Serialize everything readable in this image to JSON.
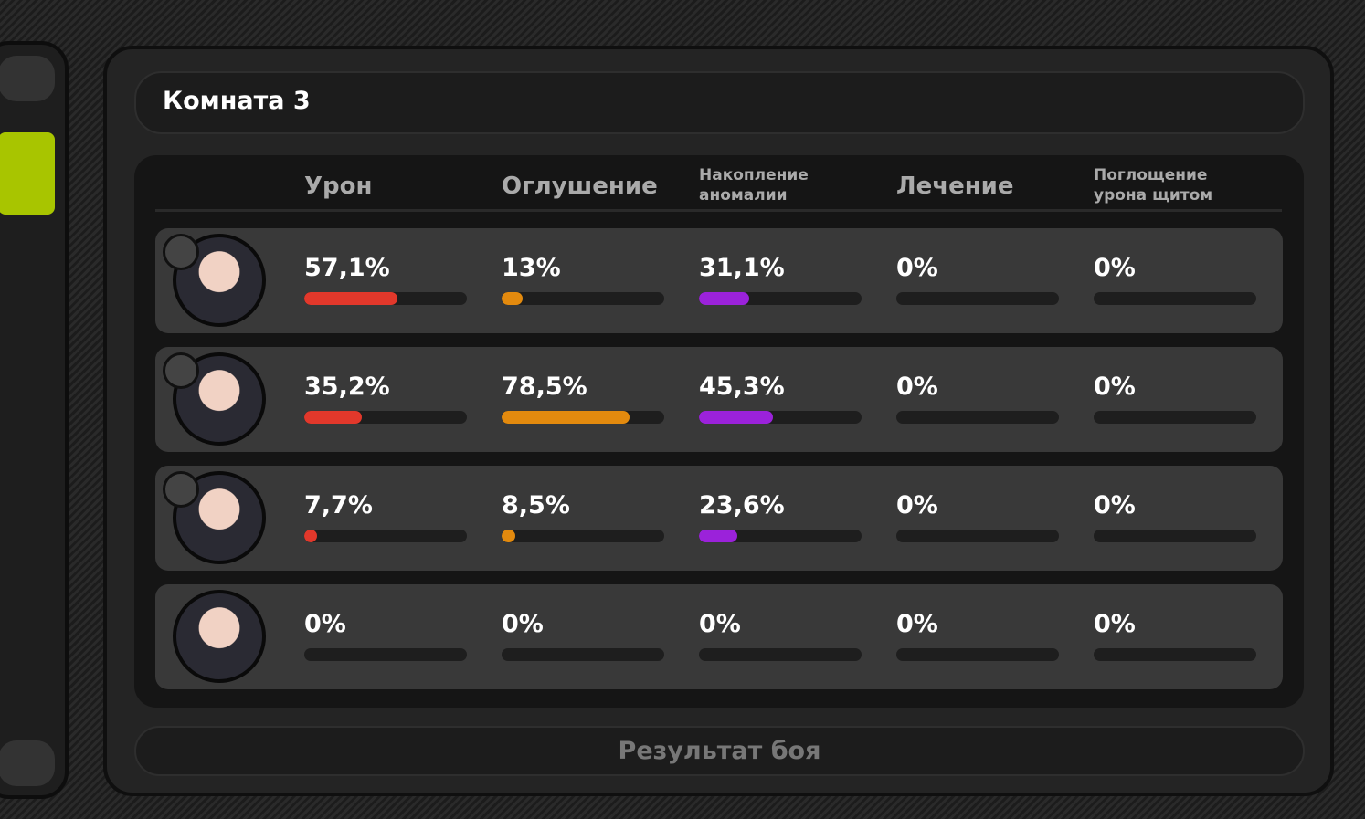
{
  "header": {
    "title": "Комната 3"
  },
  "table": {
    "scale": [
      0,
      100
    ],
    "columns": [
      {
        "label": "Урон",
        "color": "#e2382b"
      },
      {
        "label": "Оглушение",
        "color": "#e38a0e"
      },
      {
        "label": "Накопление\nаномалии",
        "color": "#9b22da"
      },
      {
        "label": "Лечение",
        "color": "#3fbf5a"
      },
      {
        "label": "Поглощение\nурона щитом",
        "color": "#3f9fdf"
      }
    ],
    "rows": [
      [
        {
          "value": 57.1,
          "label": "57,1%"
        },
        {
          "value": 13,
          "label": "13%"
        },
        {
          "value": 31.1,
          "label": "31,1%"
        },
        {
          "value": 0,
          "label": "0%"
        },
        {
          "value": 0,
          "label": "0%"
        }
      ],
      [
        {
          "value": 35.2,
          "label": "35,2%"
        },
        {
          "value": 78.5,
          "label": "78,5%"
        },
        {
          "value": 45.3,
          "label": "45,3%"
        },
        {
          "value": 0,
          "label": "0%"
        },
        {
          "value": 0,
          "label": "0%"
        }
      ],
      [
        {
          "value": 7.7,
          "label": "7,7%"
        },
        {
          "value": 8.5,
          "label": "8,5%"
        },
        {
          "value": 23.6,
          "label": "23,6%"
        },
        {
          "value": 0,
          "label": "0%"
        },
        {
          "value": 0,
          "label": "0%"
        }
      ],
      [
        {
          "value": 0,
          "label": "0%"
        },
        {
          "value": 0,
          "label": "0%"
        },
        {
          "value": 0,
          "label": "0%"
        },
        {
          "value": 0,
          "label": "0%"
        },
        {
          "value": 0,
          "label": "0%"
        }
      ]
    ]
  },
  "footer": {
    "button": "Результат боя"
  }
}
